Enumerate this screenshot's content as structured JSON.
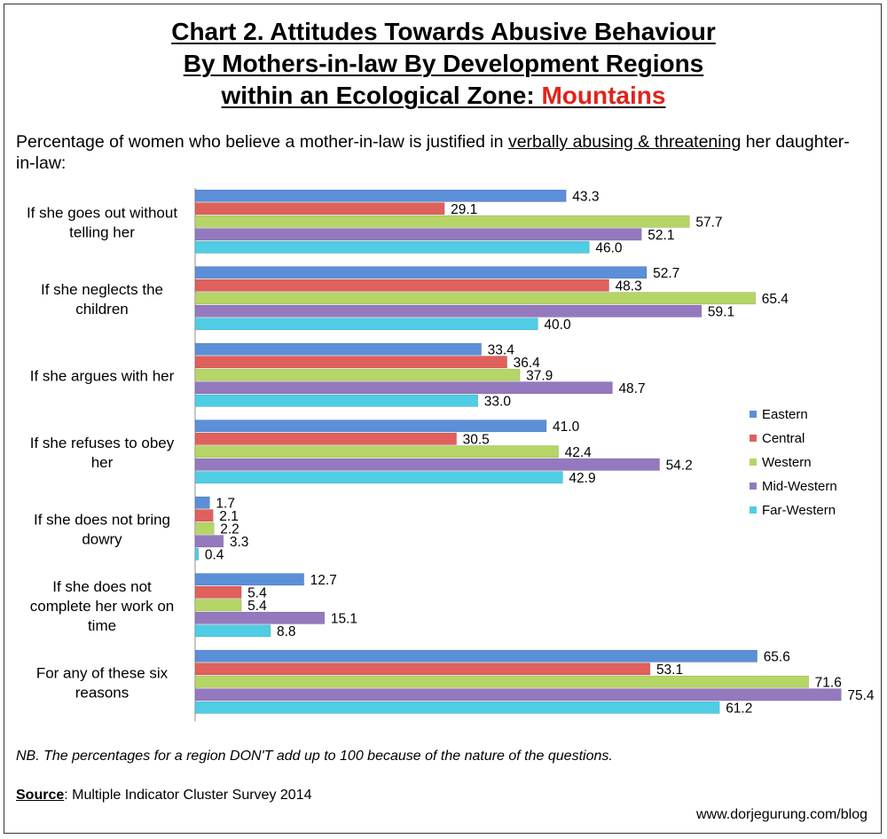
{
  "title": {
    "line1": "Chart 2. Attitudes Towards Abusive Behaviour",
    "line2": "By Mothers-in-law By Development Regions",
    "line3_prefix": "within an Ecological Zone: ",
    "line3_highlight": "Mountains"
  },
  "subtitle": {
    "before": "Percentage of women who believe a mother-in-law is justified in ",
    "underlined": "verbally abusing & threatening",
    "after": " her daughter-in-law:"
  },
  "note": "NB. The percentages for a region DON'T add up to 100 because of the nature of the questions.",
  "source": {
    "label": "Source",
    "text": ": Multiple Indicator Cluster Survey 2014"
  },
  "website": "www.dorjegurung.com/blog",
  "chart_data": {
    "type": "bar",
    "orientation": "horizontal",
    "categories": [
      [
        "If she goes out without",
        "telling her"
      ],
      [
        "If she neglects the",
        "children"
      ],
      [
        "If she argues with her"
      ],
      [
        "If she refuses to obey",
        "her"
      ],
      [
        "If she does not bring",
        "dowry"
      ],
      [
        "If she does not",
        "complete her work on",
        "time"
      ],
      [
        "For any of these six",
        "reasons"
      ]
    ],
    "series": [
      {
        "name": "Eastern",
        "color": "#5b8fd8",
        "values": [
          43.3,
          52.7,
          33.4,
          41.0,
          1.7,
          12.7,
          65.6
        ]
      },
      {
        "name": "Central",
        "color": "#e0605c",
        "values": [
          29.1,
          48.3,
          36.4,
          30.5,
          2.1,
          5.4,
          53.1
        ]
      },
      {
        "name": "Western",
        "color": "#b5d566",
        "values": [
          57.7,
          65.4,
          37.9,
          42.4,
          2.2,
          5.4,
          71.6
        ]
      },
      {
        "name": "Mid-Western",
        "color": "#9479bf",
        "values": [
          52.1,
          59.1,
          48.7,
          54.2,
          3.3,
          15.1,
          75.4
        ]
      },
      {
        "name": "Far-Western",
        "color": "#4fcde4",
        "values": [
          46.0,
          40.0,
          33.0,
          42.9,
          0.4,
          8.8,
          61.2
        ]
      }
    ],
    "xlim": [
      0,
      80
    ],
    "legend_position": "right",
    "grid": false
  }
}
